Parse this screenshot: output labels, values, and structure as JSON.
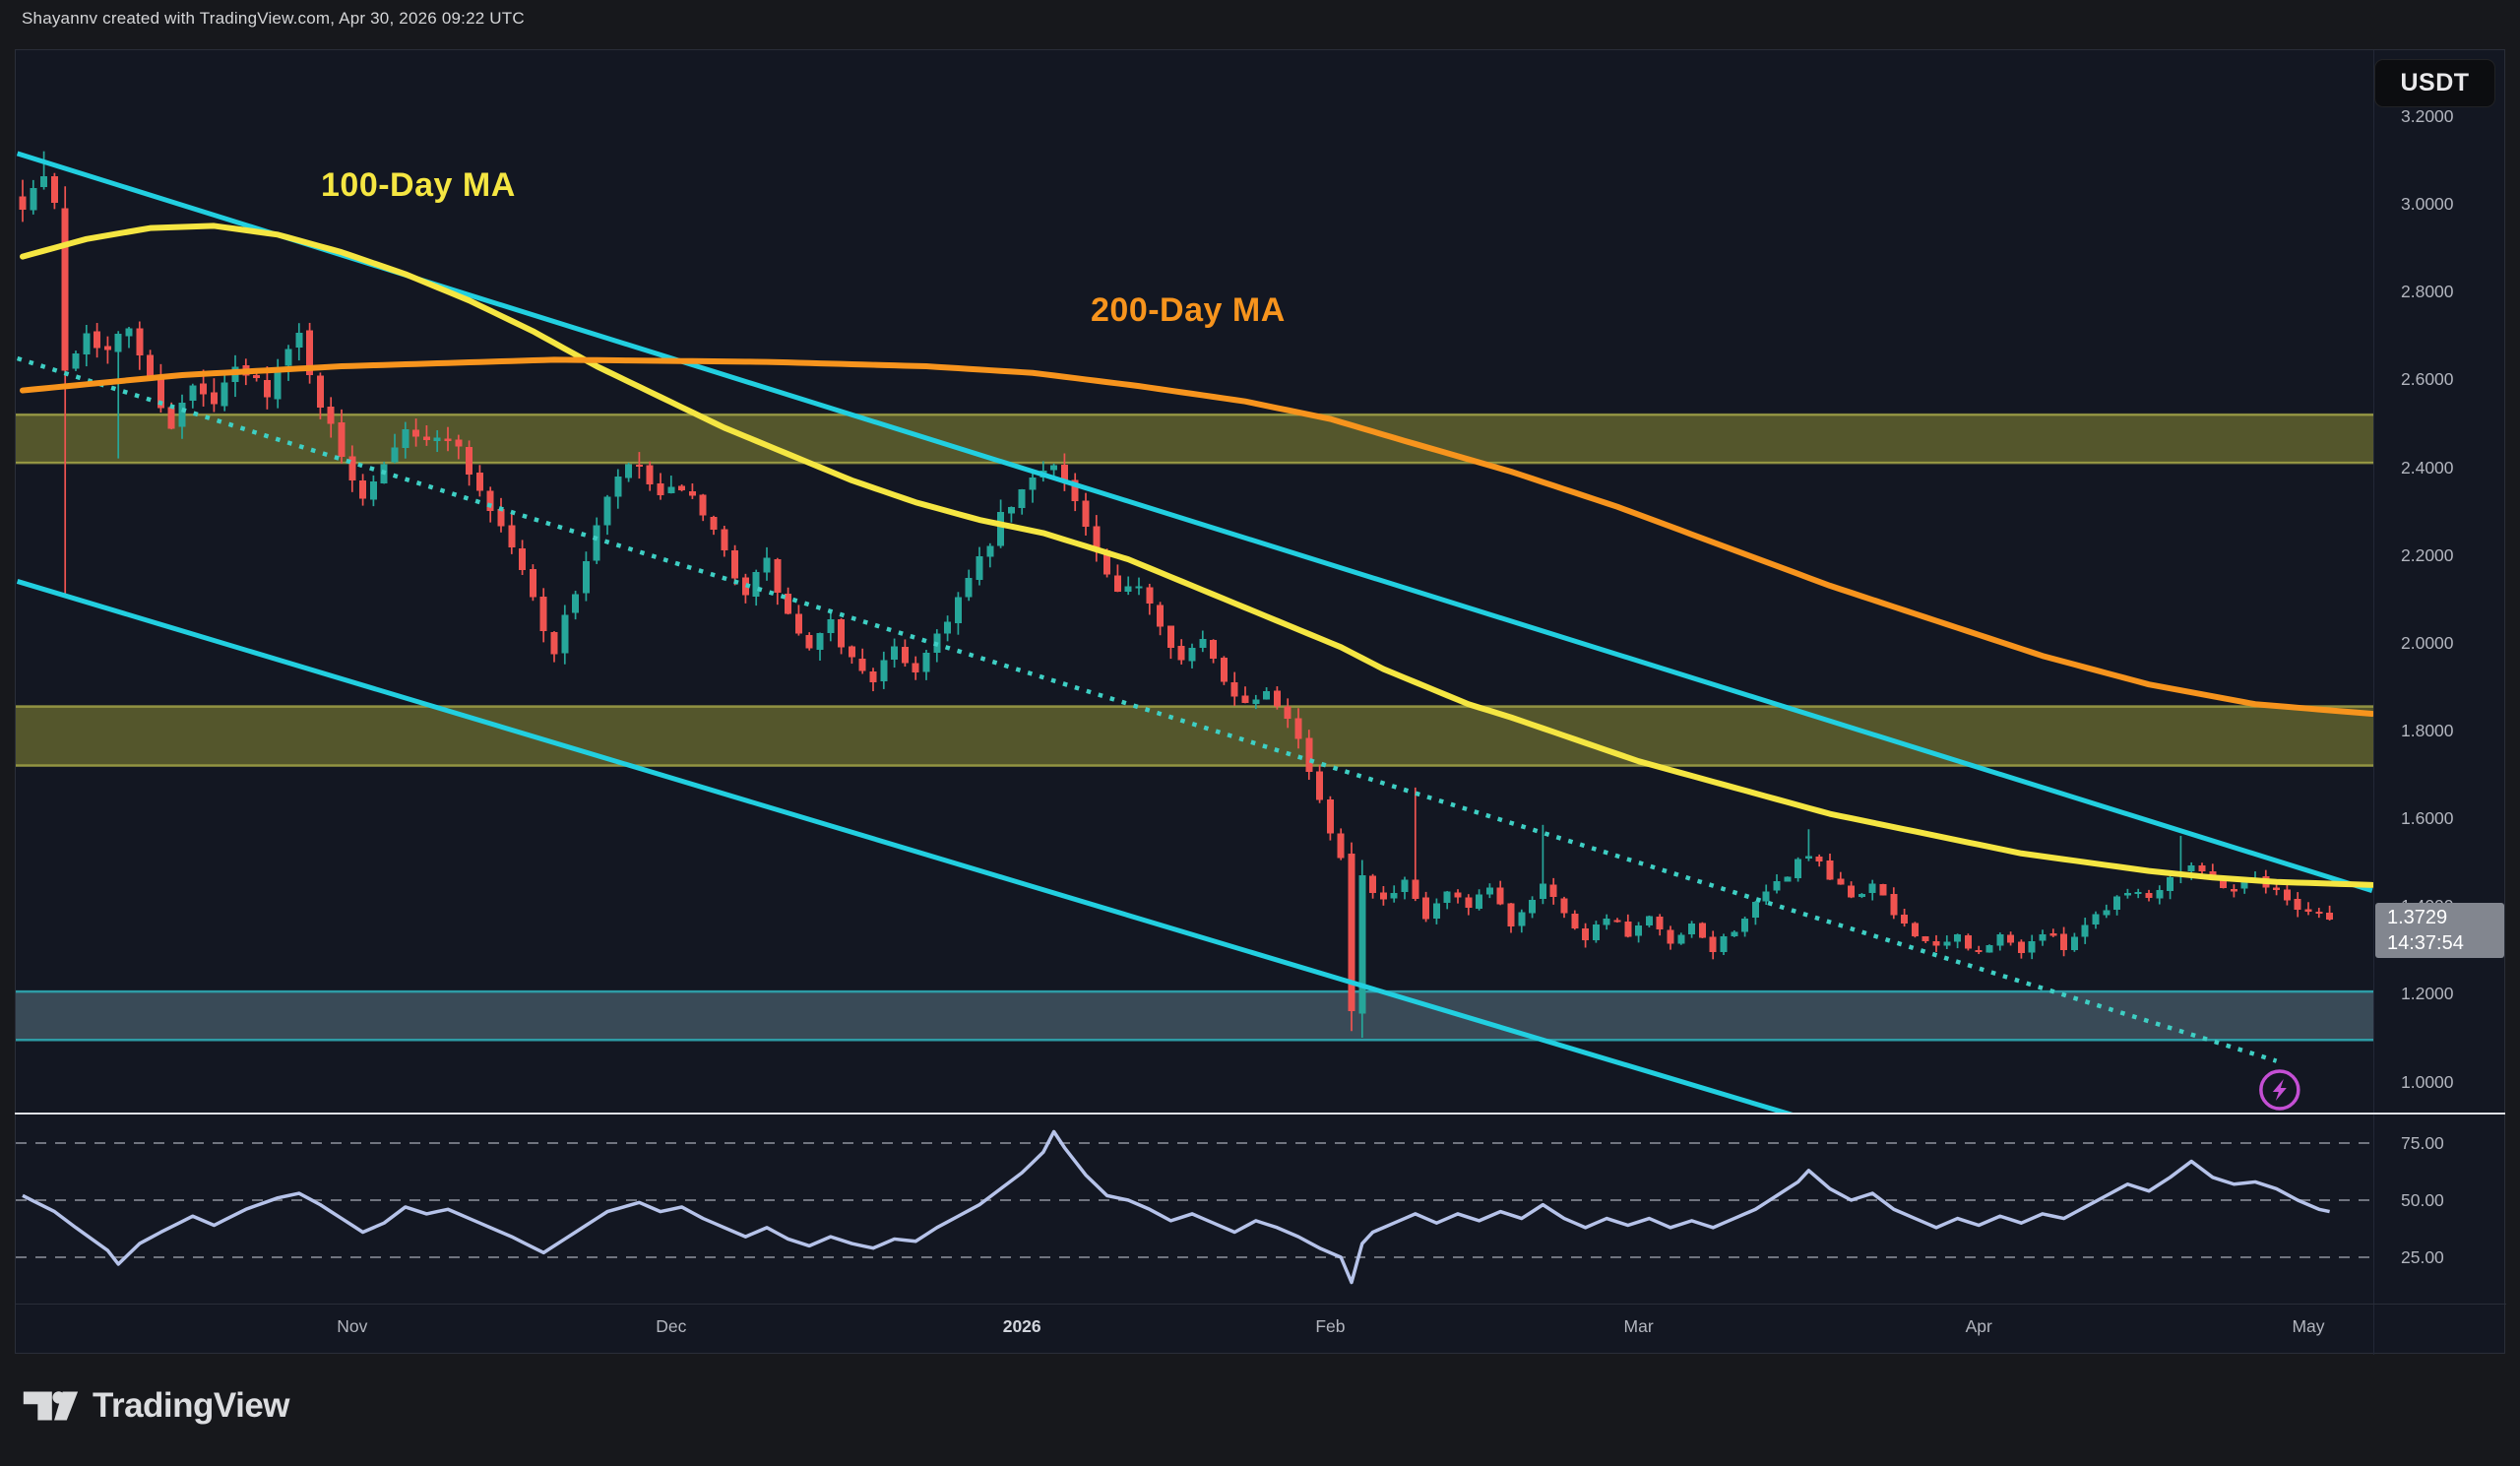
{
  "header": {
    "attribution": "Shayannv created with TradingView.com, Apr 30, 2026 09:22 UTC"
  },
  "symbol_badge": "USDT",
  "annotations": {
    "ma100": "100-Day MA",
    "ma200": "200-Day MA"
  },
  "price_tag": {
    "price": "1.3729",
    "countdown": "14:37:54"
  },
  "logo": {
    "text": "TradingView"
  },
  "colors": {
    "background_outer": "#17181c",
    "background_chart": "#131722",
    "candle_up": "#26a69a",
    "candle_down": "#ef5350",
    "ma100": "#f5e642",
    "ma200": "#f7941d",
    "channel": "#22cfe0",
    "channel_dotted": "#3ecfc4",
    "zone_olive_fill": "rgba(175,175,60,0.42)",
    "zone_olive_border": "rgba(205,205,85,0.6)",
    "zone_teal_fill": "rgba(96,125,139,0.5)",
    "zone_teal_border": "#2e9ca6",
    "rsi_line": "#b6c3ea",
    "rsi_dash": "#70747f",
    "axis_text": "#b2b5be",
    "axis_text_bright": "#d1d4dc",
    "divider": "#dfe1e6",
    "tag_bg": "#82868f",
    "marker": "#c44fd4"
  },
  "chart_data": {
    "type": "candlestick",
    "title": "USDT-quoted daily chart with 100/200-day MAs, descending channel and RSI",
    "timeframe": "1D",
    "legend_position": "overlay",
    "grid": false,
    "last_price": 1.3729,
    "countdown": "14:37:54",
    "price_axis": {
      "min": 0.95,
      "max": 3.25,
      "labels": [
        {
          "t": "3.2000",
          "p": 3.2
        },
        {
          "t": "3.0000",
          "p": 3.0
        },
        {
          "t": "2.8000",
          "p": 2.8
        },
        {
          "t": "2.6000",
          "p": 2.6
        },
        {
          "t": "2.4000",
          "p": 2.4
        },
        {
          "t": "2.2000",
          "p": 2.2
        },
        {
          "t": "2.0000",
          "p": 2.0
        },
        {
          "t": "1.8000",
          "p": 1.8
        },
        {
          "t": "1.6000",
          "p": 1.6
        },
        {
          "t": "1.4000",
          "p": 1.4
        },
        {
          "t": "1.2000",
          "p": 1.2
        },
        {
          "t": "1.0000",
          "p": 1.0
        }
      ]
    },
    "x_axis": {
      "months": [
        {
          "label": "Nov",
          "index": 31
        },
        {
          "label": "Dec",
          "index": 61
        },
        {
          "label": "2026",
          "index": 94,
          "bold": true
        },
        {
          "label": "Feb",
          "index": 123
        },
        {
          "label": "Mar",
          "index": 152
        },
        {
          "label": "Apr",
          "index": 184
        },
        {
          "label": "May",
          "index": 215
        }
      ]
    },
    "candles": {
      "count": 218,
      "close_anchors": [
        [
          0,
          3.01
        ],
        [
          2,
          3.06
        ],
        [
          3,
          2.99
        ],
        [
          4,
          2.62
        ],
        [
          6,
          2.72
        ],
        [
          8,
          2.66
        ],
        [
          10,
          2.72
        ],
        [
          12,
          2.6
        ],
        [
          14,
          2.5
        ],
        [
          16,
          2.58
        ],
        [
          18,
          2.54
        ],
        [
          20,
          2.62
        ],
        [
          23,
          2.58
        ],
        [
          26,
          2.7
        ],
        [
          28,
          2.55
        ],
        [
          30,
          2.42
        ],
        [
          32,
          2.34
        ],
        [
          34,
          2.42
        ],
        [
          36,
          2.5
        ],
        [
          38,
          2.45
        ],
        [
          40,
          2.48
        ],
        [
          43,
          2.35
        ],
        [
          46,
          2.22
        ],
        [
          48,
          2.1
        ],
        [
          50,
          1.98
        ],
        [
          52,
          2.12
        ],
        [
          54,
          2.26
        ],
        [
          56,
          2.38
        ],
        [
          58,
          2.4
        ],
        [
          60,
          2.32
        ],
        [
          62,
          2.36
        ],
        [
          64,
          2.28
        ],
        [
          66,
          2.2
        ],
        [
          68,
          2.12
        ],
        [
          70,
          2.18
        ],
        [
          72,
          2.06
        ],
        [
          74,
          1.98
        ],
        [
          76,
          2.04
        ],
        [
          78,
          1.96
        ],
        [
          80,
          1.92
        ],
        [
          82,
          1.98
        ],
        [
          84,
          1.94
        ],
        [
          86,
          2.02
        ],
        [
          88,
          2.1
        ],
        [
          90,
          2.18
        ],
        [
          92,
          2.28
        ],
        [
          94,
          2.34
        ],
        [
          96,
          2.4
        ],
        [
          97,
          2.42
        ],
        [
          99,
          2.32
        ],
        [
          101,
          2.2
        ],
        [
          103,
          2.1
        ],
        [
          105,
          2.14
        ],
        [
          107,
          2.05
        ],
        [
          109,
          1.96
        ],
        [
          111,
          2.0
        ],
        [
          113,
          1.92
        ],
        [
          115,
          1.86
        ],
        [
          117,
          1.9
        ],
        [
          119,
          1.84
        ],
        [
          120,
          1.78
        ],
        [
          121,
          1.71
        ],
        [
          122,
          1.63
        ],
        [
          123,
          1.57
        ],
        [
          124,
          1.52
        ],
        [
          125,
          1.16
        ],
        [
          126,
          1.47
        ],
        [
          128,
          1.41
        ],
        [
          130,
          1.45
        ],
        [
          132,
          1.37
        ],
        [
          134,
          1.43
        ],
        [
          136,
          1.39
        ],
        [
          138,
          1.44
        ],
        [
          140,
          1.36
        ],
        [
          142,
          1.42
        ],
        [
          143,
          1.46
        ],
        [
          145,
          1.38
        ],
        [
          147,
          1.33
        ],
        [
          149,
          1.38
        ],
        [
          151,
          1.33
        ],
        [
          153,
          1.37
        ],
        [
          155,
          1.31
        ],
        [
          157,
          1.35
        ],
        [
          159,
          1.3
        ],
        [
          161,
          1.35
        ],
        [
          163,
          1.4
        ],
        [
          165,
          1.45
        ],
        [
          167,
          1.5
        ],
        [
          168,
          1.52
        ],
        [
          170,
          1.46
        ],
        [
          172,
          1.42
        ],
        [
          174,
          1.45
        ],
        [
          176,
          1.38
        ],
        [
          178,
          1.34
        ],
        [
          180,
          1.3
        ],
        [
          182,
          1.33
        ],
        [
          184,
          1.29
        ],
        [
          186,
          1.33
        ],
        [
          188,
          1.3
        ],
        [
          190,
          1.34
        ],
        [
          192,
          1.31
        ],
        [
          194,
          1.36
        ],
        [
          196,
          1.4
        ],
        [
          198,
          1.44
        ],
        [
          200,
          1.42
        ],
        [
          202,
          1.47
        ],
        [
          204,
          1.5
        ],
        [
          206,
          1.46
        ],
        [
          208,
          1.44
        ],
        [
          210,
          1.47
        ],
        [
          212,
          1.43
        ],
        [
          214,
          1.4
        ],
        [
          216,
          1.385
        ],
        [
          217,
          1.373
        ]
      ],
      "overrides": [
        {
          "i": 2,
          "h": 3.12
        },
        {
          "i": 4,
          "o": 2.99,
          "h": 3.04,
          "l": 2.11,
          "c": 2.62
        },
        {
          "i": 9,
          "l": 2.42
        },
        {
          "i": 125,
          "o": 1.52,
          "h": 1.545,
          "l": 1.115,
          "c": 1.16
        },
        {
          "i": 126,
          "o": 1.155,
          "h": 1.505,
          "l": 1.1,
          "c": 1.47
        },
        {
          "i": 131,
          "h": 1.67
        },
        {
          "i": 143,
          "h": 1.585
        },
        {
          "i": 168,
          "h": 1.575
        },
        {
          "i": 203,
          "h": 1.56
        }
      ]
    },
    "moving_averages": [
      {
        "name": "100-Day MA",
        "color_key": "ma100",
        "anchors": [
          [
            0,
            2.88
          ],
          [
            6,
            2.92
          ],
          [
            12,
            2.945
          ],
          [
            18,
            2.95
          ],
          [
            24,
            2.93
          ],
          [
            30,
            2.89
          ],
          [
            36,
            2.84
          ],
          [
            42,
            2.78
          ],
          [
            48,
            2.71
          ],
          [
            54,
            2.63
          ],
          [
            60,
            2.56
          ],
          [
            66,
            2.49
          ],
          [
            72,
            2.43
          ],
          [
            78,
            2.37
          ],
          [
            84,
            2.32
          ],
          [
            90,
            2.28
          ],
          [
            96,
            2.25
          ],
          [
            100,
            2.22
          ],
          [
            104,
            2.19
          ],
          [
            108,
            2.15
          ],
          [
            112,
            2.11
          ],
          [
            116,
            2.07
          ],
          [
            120,
            2.03
          ],
          [
            124,
            1.99
          ],
          [
            128,
            1.94
          ],
          [
            132,
            1.9
          ],
          [
            136,
            1.86
          ],
          [
            140,
            1.83
          ],
          [
            146,
            1.78
          ],
          [
            152,
            1.73
          ],
          [
            158,
            1.69
          ],
          [
            164,
            1.65
          ],
          [
            170,
            1.61
          ],
          [
            176,
            1.58
          ],
          [
            182,
            1.55
          ],
          [
            188,
            1.52
          ],
          [
            194,
            1.5
          ],
          [
            200,
            1.48
          ],
          [
            206,
            1.465
          ],
          [
            212,
            1.455
          ],
          [
            221,
            1.448
          ]
        ]
      },
      {
        "name": "200-Day MA",
        "color_key": "ma200",
        "anchors": [
          [
            0,
            2.575
          ],
          [
            15,
            2.61
          ],
          [
            30,
            2.63
          ],
          [
            50,
            2.645
          ],
          [
            70,
            2.64
          ],
          [
            85,
            2.63
          ],
          [
            95,
            2.615
          ],
          [
            105,
            2.585
          ],
          [
            115,
            2.55
          ],
          [
            123,
            2.51
          ],
          [
            130,
            2.46
          ],
          [
            140,
            2.39
          ],
          [
            150,
            2.31
          ],
          [
            160,
            2.22
          ],
          [
            170,
            2.13
          ],
          [
            180,
            2.05
          ],
          [
            190,
            1.97
          ],
          [
            200,
            1.905
          ],
          [
            210,
            1.86
          ],
          [
            221,
            1.838
          ]
        ]
      }
    ],
    "trendlines": [
      {
        "name": "channel-top",
        "style": "solid",
        "from": [
          -0.5,
          3.115
        ],
        "to": [
          221,
          1.435
        ]
      },
      {
        "name": "channel-bottom",
        "style": "solid",
        "from": [
          -0.5,
          2.14
        ],
        "to": [
          167,
          0.92
        ]
      },
      {
        "name": "channel-mid",
        "style": "dotted",
        "from": [
          -0.5,
          2.648
        ],
        "to": [
          212,
          1.047
        ]
      }
    ],
    "zones": [
      {
        "kind": "olive",
        "from": 2.41,
        "to": 2.52
      },
      {
        "kind": "olive",
        "from": 1.72,
        "to": 1.855
      },
      {
        "kind": "teal",
        "from": 1.095,
        "to": 1.205
      }
    ],
    "marker": {
      "kind": "lightning",
      "index": 212.3,
      "price": 0.981
    },
    "rsi": {
      "levels": [
        {
          "t": "75.00",
          "v": 75
        },
        {
          "t": "50.00",
          "v": 50
        },
        {
          "t": "25.00",
          "v": 25
        }
      ],
      "anchors": [
        [
          0,
          52
        ],
        [
          3,
          45
        ],
        [
          5,
          38
        ],
        [
          8,
          28
        ],
        [
          9,
          22
        ],
        [
          11,
          31
        ],
        [
          13,
          36
        ],
        [
          16,
          43
        ],
        [
          18,
          39
        ],
        [
          21,
          46
        ],
        [
          24,
          51
        ],
        [
          26,
          53
        ],
        [
          28,
          48
        ],
        [
          30,
          42
        ],
        [
          32,
          36
        ],
        [
          34,
          40
        ],
        [
          36,
          47
        ],
        [
          38,
          44
        ],
        [
          40,
          46
        ],
        [
          43,
          40
        ],
        [
          46,
          34
        ],
        [
          49,
          27
        ],
        [
          52,
          36
        ],
        [
          55,
          45
        ],
        [
          58,
          49
        ],
        [
          60,
          45
        ],
        [
          62,
          47
        ],
        [
          64,
          42
        ],
        [
          66,
          38
        ],
        [
          68,
          34
        ],
        [
          70,
          38
        ],
        [
          72,
          33
        ],
        [
          74,
          30
        ],
        [
          76,
          34
        ],
        [
          78,
          31
        ],
        [
          80,
          29
        ],
        [
          82,
          33
        ],
        [
          84,
          32
        ],
        [
          86,
          38
        ],
        [
          88,
          43
        ],
        [
          90,
          48
        ],
        [
          92,
          55
        ],
        [
          94,
          62
        ],
        [
          96,
          71
        ],
        [
          97,
          80
        ],
        [
          98,
          73
        ],
        [
          100,
          61
        ],
        [
          102,
          52
        ],
        [
          104,
          50
        ],
        [
          106,
          46
        ],
        [
          108,
          41
        ],
        [
          110,
          44
        ],
        [
          112,
          40
        ],
        [
          114,
          36
        ],
        [
          116,
          41
        ],
        [
          118,
          38
        ],
        [
          120,
          34
        ],
        [
          122,
          29
        ],
        [
          124,
          25
        ],
        [
          125,
          14
        ],
        [
          126,
          31
        ],
        [
          127,
          36
        ],
        [
          129,
          40
        ],
        [
          131,
          44
        ],
        [
          133,
          40
        ],
        [
          135,
          44
        ],
        [
          137,
          41
        ],
        [
          139,
          45
        ],
        [
          141,
          42
        ],
        [
          143,
          48
        ],
        [
          145,
          42
        ],
        [
          147,
          38
        ],
        [
          149,
          42
        ],
        [
          151,
          39
        ],
        [
          153,
          42
        ],
        [
          155,
          38
        ],
        [
          157,
          41
        ],
        [
          159,
          38
        ],
        [
          161,
          42
        ],
        [
          163,
          46
        ],
        [
          165,
          52
        ],
        [
          167,
          58
        ],
        [
          168,
          63
        ],
        [
          170,
          55
        ],
        [
          172,
          50
        ],
        [
          174,
          53
        ],
        [
          176,
          46
        ],
        [
          178,
          42
        ],
        [
          180,
          38
        ],
        [
          182,
          42
        ],
        [
          184,
          39
        ],
        [
          186,
          43
        ],
        [
          188,
          40
        ],
        [
          190,
          44
        ],
        [
          192,
          42
        ],
        [
          194,
          47
        ],
        [
          196,
          52
        ],
        [
          198,
          57
        ],
        [
          200,
          54
        ],
        [
          202,
          60
        ],
        [
          204,
          67
        ],
        [
          206,
          60
        ],
        [
          208,
          57
        ],
        [
          210,
          58
        ],
        [
          212,
          55
        ],
        [
          214,
          50
        ],
        [
          216,
          46
        ],
        [
          217,
          45
        ]
      ]
    }
  }
}
